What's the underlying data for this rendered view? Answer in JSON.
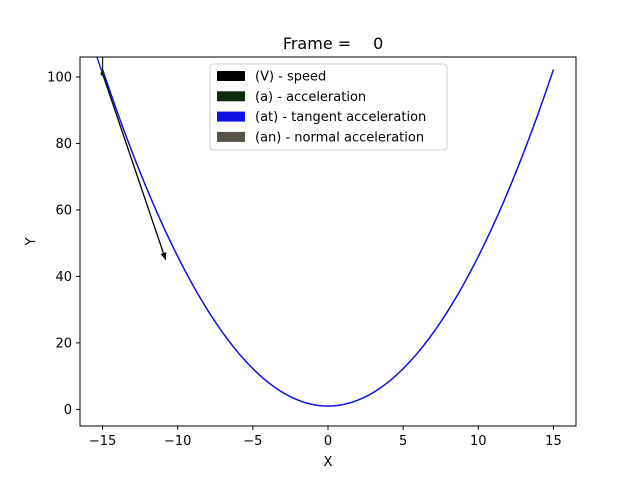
{
  "title": {
    "prefix": "Frame =",
    "frame_value": "0"
  },
  "chart_data": {
    "type": "line",
    "title": "Frame =    0",
    "xlabel": "X",
    "ylabel": "Y",
    "xlim": [
      -16.5,
      16.5
    ],
    "ylim": [
      -5,
      106
    ],
    "xticks": [
      -15,
      -10,
      -5,
      0,
      5,
      10,
      15
    ],
    "yticks": [
      0,
      20,
      40,
      60,
      80,
      100
    ],
    "grid": false,
    "legend_position": "upper center",
    "curve": {
      "equation": "y = 0.45*x^2 + 1",
      "x_range": [
        -15,
        15
      ],
      "color": "#1010e0"
    },
    "point": {
      "x": -15,
      "y": 101
    },
    "vectors": [
      {
        "name": "(V) - speed",
        "color": "#000000",
        "from": [
          -15,
          101
        ],
        "to": [
          -10.8,
          45
        ],
        "visible": true
      },
      {
        "name": "(a) - acceleration",
        "color": "#0d2a0d",
        "from": [
          -15,
          101
        ],
        "to": [
          -15,
          112
        ],
        "visible": true
      },
      {
        "name": "(at) - tangent acceleration",
        "color": "#1010e0",
        "from": [
          -15,
          101
        ],
        "to": [
          -15.6,
          109
        ],
        "visible": true
      },
      {
        "name": "(an) - normal acceleration",
        "color": "#5a5448",
        "from": [
          -15,
          101
        ],
        "to": [
          -15,
          101
        ],
        "visible": false
      }
    ]
  }
}
